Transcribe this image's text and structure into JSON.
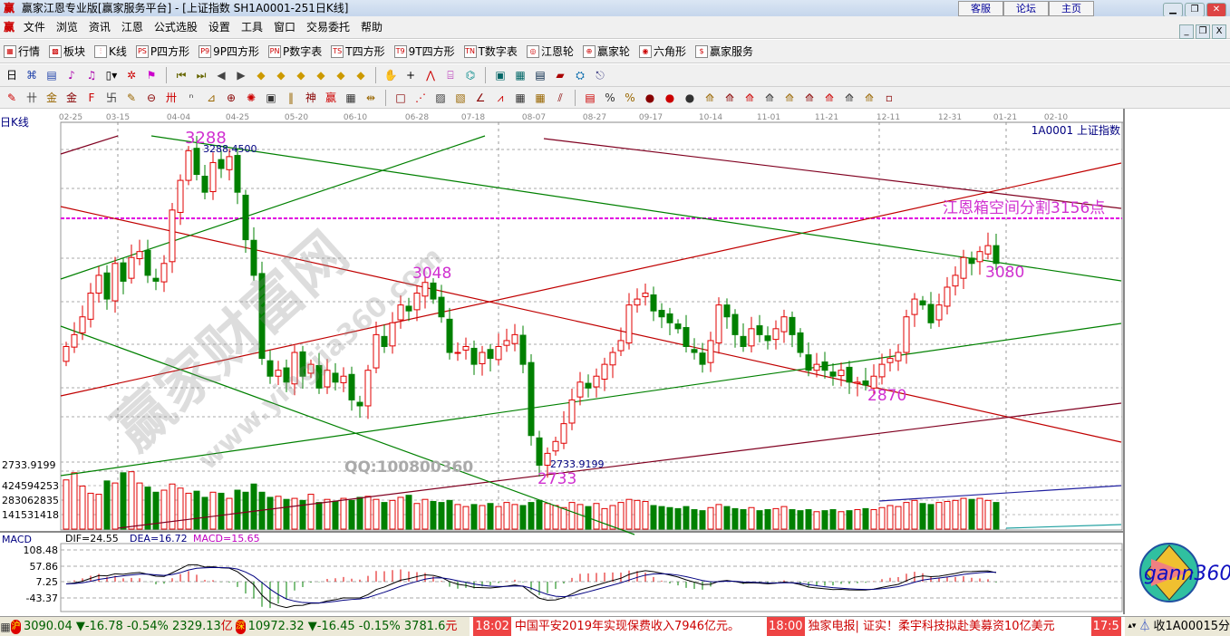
{
  "window": {
    "title": "赢家江恩专业版[赢家服务平台] - [上证指数  SH1A0001-251日K线]",
    "top_links": [
      "客服",
      "论坛",
      "主页"
    ],
    "app_icon": "ying-logo-icon"
  },
  "menu": [
    "文件",
    "浏览",
    "资讯",
    "江恩",
    "公式选股",
    "设置",
    "工具",
    "窗口",
    "交易委托",
    "帮助"
  ],
  "toolbar_main": [
    {
      "icon": "table-icon",
      "glyph": "▦",
      "label": "行情"
    },
    {
      "icon": "blocks-icon",
      "glyph": "▩",
      "label": "板块"
    },
    {
      "icon": "candlestick-icon",
      "glyph": "⫶",
      "label": "K线"
    },
    {
      "icon": "ps-icon",
      "glyph": "PS",
      "label": "P四方形"
    },
    {
      "icon": "p9-icon",
      "glyph": "P9",
      "label": "9P四方形"
    },
    {
      "icon": "pn-icon",
      "glyph": "PN",
      "label": "P数字表"
    },
    {
      "icon": "ts-icon",
      "glyph": "TS",
      "label": "T四方形"
    },
    {
      "icon": "t9-icon",
      "glyph": "T9",
      "label": "9T四方形"
    },
    {
      "icon": "tn-icon",
      "glyph": "TN",
      "label": "T数字表"
    },
    {
      "icon": "gann-wheel-icon",
      "glyph": "◎",
      "label": "江恩轮"
    },
    {
      "icon": "big-wheel-icon",
      "glyph": "⊕",
      "label": "赢家轮"
    },
    {
      "icon": "hexagon-icon",
      "glyph": "◉",
      "label": "六角形"
    },
    {
      "icon": "dollar-icon",
      "glyph": "$",
      "label": "赢家服务"
    }
  ],
  "toolbar_2": [
    {
      "icon": "period-day-icon",
      "glyph": "日▾"
    },
    {
      "icon": "network-icon",
      "glyph": "⌘"
    },
    {
      "icon": "clipboard-icon",
      "glyph": "▤"
    },
    {
      "icon": "chart-3-icon",
      "glyph": "♪"
    },
    {
      "icon": "chart-9-icon",
      "glyph": "♫"
    },
    {
      "icon": "candle-type-icon",
      "glyph": "▯▾"
    },
    {
      "icon": "pattern-icon",
      "glyph": "✲"
    },
    {
      "icon": "flag-icon",
      "glyph": "⚑"
    },
    {
      "icon": "first-icon",
      "glyph": "⏮"
    },
    {
      "icon": "last-icon",
      "glyph": "⏭"
    },
    {
      "icon": "prev-icon",
      "glyph": "◀"
    },
    {
      "icon": "next-icon",
      "glyph": "▶"
    },
    {
      "icon": "left-diamond-icon",
      "glyph": "◆"
    },
    {
      "icon": "right-diamond-icon",
      "glyph": "◆"
    },
    {
      "icon": "expand-h-icon",
      "glyph": "◆"
    },
    {
      "icon": "shrink-h-icon",
      "glyph": "◆"
    },
    {
      "icon": "expand-all-icon",
      "glyph": "◆"
    },
    {
      "icon": "expand-v-icon",
      "glyph": "◆"
    },
    {
      "icon": "hand-icon",
      "glyph": "✋"
    },
    {
      "icon": "crosshair-icon",
      "glyph": "+"
    },
    {
      "icon": "draw-line-icon",
      "glyph": "⋀"
    },
    {
      "icon": "formula-icon",
      "glyph": "⌸"
    },
    {
      "icon": "indicator-icon",
      "glyph": "⌬"
    },
    {
      "icon": "calendar-icon",
      "glyph": "▣"
    },
    {
      "icon": "calculator-icon",
      "glyph": "▦"
    },
    {
      "icon": "notes-icon",
      "glyph": "▤"
    },
    {
      "icon": "save-icon",
      "glyph": "▰"
    },
    {
      "icon": "network-settings-icon",
      "glyph": "⛭"
    },
    {
      "icon": "exit-icon",
      "glyph": "⎋"
    }
  ],
  "toolbar_3": [
    "pen-icon",
    "gann-lines-icon",
    "gold-1-icon",
    "gold-2-icon",
    "fib-icon",
    "spiral-icon",
    "brush-icon",
    "circle-icon",
    "parallel-icon",
    "n2-icon",
    "angle-icon",
    "target-icon",
    "web-icon",
    "square-icon",
    "speed-lines-icon",
    "shen-icon",
    "ying-icon",
    "ruler-icon",
    "width-icon",
    "box-icon",
    "fan-icon",
    "gann-box-icon",
    "gann-grid-icon",
    "arc-icon",
    "zigzag-icon",
    "grid-icon",
    "grid-2-icon",
    "channel-icon",
    "stats-icon",
    "percent-ratio-icon",
    "percent-icon",
    "gold-coin-icon",
    "coin-2-icon",
    "coin-3-icon",
    "trend-up-icon",
    "trend-2-icon",
    "cycle-icon",
    "cycle-2-icon",
    "wave-icon",
    "wave-2-icon",
    "wave-3-icon",
    "wave-4-icon",
    "wave-5-icon",
    "wave-6-icon"
  ],
  "chart": {
    "period_label": "日K线",
    "symbol_label": "1A0001  上证指数",
    "date_ticks": [
      "02-25",
      "03-15",
      "04-04",
      "04-25",
      "05-20",
      "06-10",
      "06-28",
      "07-18",
      "08-07",
      "08-27",
      "09-17",
      "10-14",
      "11-01",
      "11-21",
      "12-11",
      "12-31",
      "01-21",
      "02-10"
    ],
    "price_axis_label": "2733.9199",
    "volume_axis_labels": [
      "424594253",
      "283062835",
      "141531418"
    ],
    "annotations": {
      "high": "3288",
      "high_exact": "3288.4500",
      "mid_high": "3048",
      "low": "2733",
      "low_exact": "2733.9199",
      "recent_low": "2870",
      "last": "3080",
      "box_level": "江恩箱空间分割3156点"
    },
    "watermark": {
      "site_name": "赢家财富网",
      "url": "www.yingjia360.com",
      "qq": "QQ:100800360"
    },
    "colors": {
      "up": "#e00000",
      "down": "#008000",
      "box_line": "#e000e0",
      "label": "#d030d0",
      "axis_text": "#000080"
    }
  },
  "macd": {
    "title": "MACD",
    "dif": "DIF=24.55",
    "dea": "DEA=16.72",
    "macd": "MACD=15.65",
    "axis_labels": [
      "108.48",
      "57.86",
      "7.25",
      "-43.37"
    ]
  },
  "logo": {
    "text": "gann360"
  },
  "statusbar": {
    "sh_badge": "沪",
    "sh_quote": "3090.04 ▼-16.78 -0.54% 2329.13",
    "sh_unit": "亿",
    "sz_badge": "深",
    "sz_quote": "10972.32 ▼-16.45 -0.15% 3781.6",
    "sz_unit": "元",
    "news": [
      {
        "time": "18:02",
        "text": "中国平安2019年实现保费收入7946亿元。"
      },
      {
        "time": "18:00",
        "text": "独家电报| 证实！柔宇科技拟赴美募资10亿美元"
      },
      {
        "time": "17:5",
        "text": ""
      }
    ],
    "right_text": "收1A00015分"
  },
  "chart_data": {
    "type": "candlestick",
    "title": "上证指数",
    "ylim": [
      2700,
      3300
    ],
    "closes": [
      2940,
      2960,
      2990,
      3030,
      3060,
      3020,
      3080,
      3050,
      3090,
      3100,
      3060,
      3050,
      3080,
      3170,
      3220,
      3270,
      3230,
      3200,
      3250,
      3240,
      3260,
      3200,
      3120,
      3060,
      2920,
      2890,
      2900,
      2880,
      2930,
      2890,
      2910,
      2870,
      2900,
      2880,
      2890,
      2850,
      2840,
      2900,
      2960,
      2940,
      2980,
      3010,
      3000,
      3030,
      3048,
      3020,
      2990,
      2930,
      2930,
      2940,
      2910,
      2930,
      2920,
      2940,
      2950,
      2960,
      2910,
      2790,
      2740,
      2760,
      2780,
      2810,
      2850,
      2880,
      2870,
      2890,
      2910,
      2930,
      2950,
      3010,
      3020,
      3030,
      3000,
      2990,
      2980,
      2970,
      2940,
      2930,
      2910,
      2950,
      3010,
      2990,
      2960,
      2940,
      2970,
      2960,
      2950,
      2970,
      2990,
      2960,
      2930,
      2900,
      2910,
      2900,
      2890,
      2900,
      2880,
      2880,
      2875,
      2890,
      2910,
      2920,
      2930,
      2990,
      3020,
      3010,
      2980,
      3010,
      3040,
      3060,
      3090,
      3080,
      3100,
      3110,
      3080
    ],
    "volumes": [
      480000000.0,
      550000000.0,
      420000000.0,
      350000000.0,
      340000000.0,
      470000000.0,
      450000000.0,
      550000000.0,
      560000000.0,
      450000000.0,
      410000000.0,
      360000000.0,
      380000000.0,
      440000000.0,
      400000000.0,
      350000000.0,
      370000000.0,
      310000000.0,
      360000000.0,
      350000000.0,
      300000000.0,
      380000000.0,
      360000000.0,
      440000000.0,
      360000000.0,
      310000000.0,
      320000000.0,
      290000000.0,
      300000000.0,
      280000000.0,
      340000000.0,
      260000000.0,
      290000000.0,
      270000000.0,
      300000000.0,
      280000000.0,
      310000000.0,
      320000000.0,
      290000000.0,
      260000000.0,
      280000000.0,
      310000000.0,
      330000000.0,
      250000000.0,
      290000000.0,
      270000000.0,
      260000000.0,
      280000000.0,
      240000000.0,
      220000000.0,
      240000000.0,
      230000000.0,
      250000000.0,
      220000000.0,
      260000000.0,
      240000000.0,
      230000000.0,
      260000000.0,
      280000000.0,
      250000000.0,
      230000000.0,
      210000000.0,
      260000000.0,
      240000000.0,
      220000000.0,
      250000000.0,
      200000000.0,
      230000000.0,
      260000000.0,
      290000000.0,
      280000000.0,
      270000000.0,
      230000000.0,
      220000000.0,
      210000000.0,
      200000000.0,
      220000000.0,
      190000000.0,
      180000000.0,
      210000000.0,
      240000000.0,
      220000000.0,
      200000000.0,
      190000000.0,
      210000000.0,
      180000000.0,
      190000000.0,
      200000000.0,
      220000000.0,
      190000000.0,
      180000000.0,
      190000000.0,
      170000000.0,
      180000000.0,
      190000000.0,
      170000000.0,
      180000000.0,
      190000000.0,
      200000000.0,
      190000000.0,
      210000000.0,
      230000000.0,
      220000000.0,
      260000000.0,
      280000000.0,
      250000000.0,
      240000000.0,
      260000000.0,
      270000000.0,
      280000000.0,
      300000000.0,
      290000000.0,
      300000000.0,
      280000000.0,
      260000000.0
    ],
    "horizontal_level": 3156,
    "macd_axis": [
      108.48,
      57.86,
      7.25,
      -43.37
    ]
  }
}
